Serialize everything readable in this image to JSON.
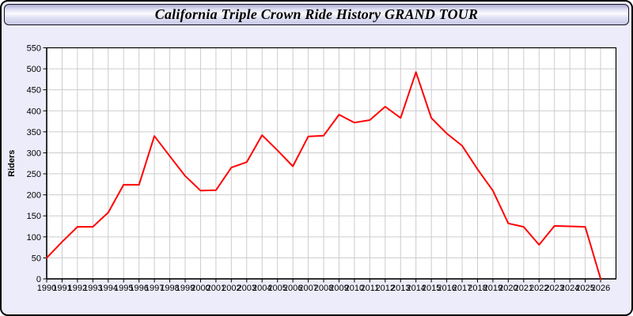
{
  "window": {
    "title": "California Triple Crown Ride History GRAND TOUR"
  },
  "chart_data": {
    "type": "line",
    "title": "California Triple Crown Ride History GRAND TOUR",
    "xlabel": "",
    "ylabel": "Riders",
    "x": [
      1990,
      1991,
      1992,
      1993,
      1994,
      1995,
      1996,
      1997,
      1998,
      1999,
      2000,
      2001,
      2002,
      2003,
      2004,
      2005,
      2006,
      2007,
      2008,
      2009,
      2010,
      2011,
      2012,
      2013,
      2014,
      2015,
      2016,
      2017,
      2018,
      2019,
      2020,
      2021,
      2022,
      2023,
      2024,
      2025,
      2026
    ],
    "series": [
      {
        "name": "Riders",
        "color": "#ff0000",
        "values": [
          50,
          88,
          124,
          124,
          158,
          224,
          224,
          340,
          292,
          245,
          210,
          211,
          265,
          278,
          342,
          306,
          268,
          339,
          341,
          391,
          372,
          378,
          410,
          383,
          492,
          383,
          346,
          317,
          261,
          210,
          132,
          124,
          81,
          126,
          125,
          124,
          0
        ]
      }
    ],
    "ylim": [
      0,
      550
    ],
    "ytick_step": 50,
    "grid": true,
    "legend_position": "none",
    "colors": {
      "plot_bg": "#ffffff",
      "grid": "#cccccc",
      "axis": "#000000",
      "page_bg": "#ececfa",
      "line": "#ff0000"
    }
  }
}
